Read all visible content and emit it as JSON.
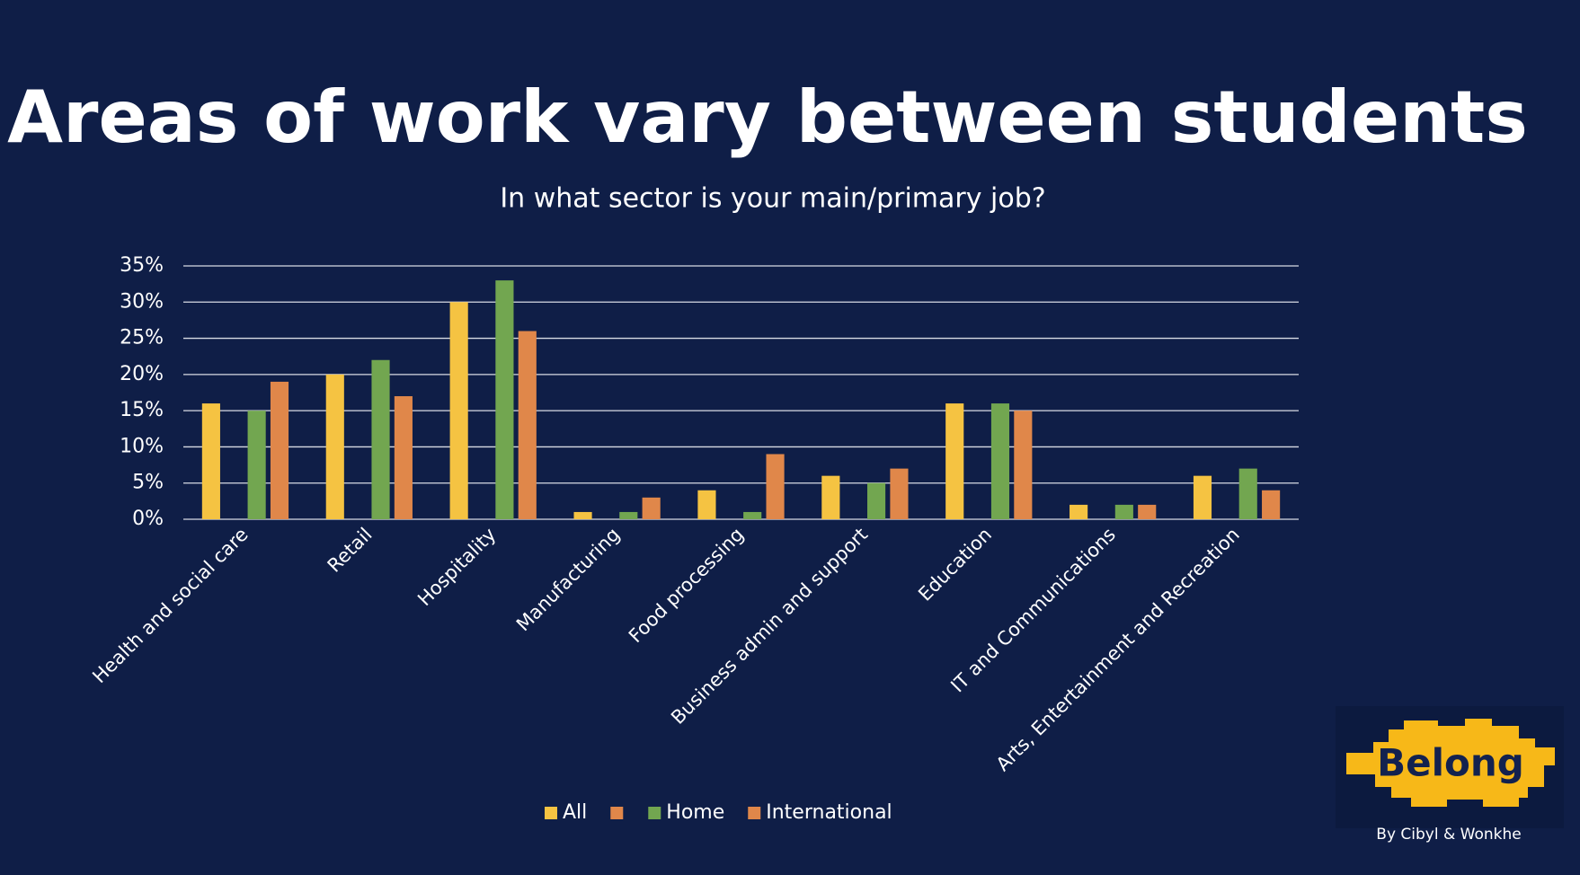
{
  "chart_data": {
    "type": "bar",
    "title": "Areas of work vary between students",
    "subtitle": "In what sector is your main/primary job?",
    "categories": [
      "Health and social care",
      "Retail",
      "Hospitality",
      "Manufacturing",
      "Food processing",
      "Business admin and support",
      "Education",
      "IT and Communications",
      "Arts, Entertainment and Recreation"
    ],
    "series": [
      {
        "name": "All",
        "color": "#f5c342",
        "values": [
          16,
          20,
          30,
          1,
          4,
          6,
          16,
          2,
          6
        ]
      },
      {
        "name": null,
        "color": "#e0874a",
        "values": [
          null,
          null,
          null,
          null,
          null,
          null,
          null,
          null,
          null
        ]
      },
      {
        "name": "Home",
        "color": "#72a650",
        "values": [
          15,
          22,
          33,
          1,
          1,
          5,
          16,
          2,
          7
        ]
      },
      {
        "name": "International",
        "color": "#e0874a",
        "values": [
          19,
          17,
          26,
          3,
          9,
          7,
          15,
          2,
          4
        ]
      }
    ],
    "ylim": [
      0,
      35
    ],
    "yticks": [
      {
        "value": 0,
        "label": "0%"
      },
      {
        "value": 5,
        "label": "5%"
      },
      {
        "value": 10,
        "label": "10%"
      },
      {
        "value": 15,
        "label": "15%"
      },
      {
        "value": 20,
        "label": "20%"
      },
      {
        "value": 25,
        "label": "25%"
      },
      {
        "value": 30,
        "label": "30%"
      },
      {
        "value": 35,
        "label": "35%"
      }
    ],
    "grid": true,
    "legend": "bottom"
  },
  "logo": {
    "text": "Belong",
    "caption": "By Cibyl & Wonkhe"
  }
}
